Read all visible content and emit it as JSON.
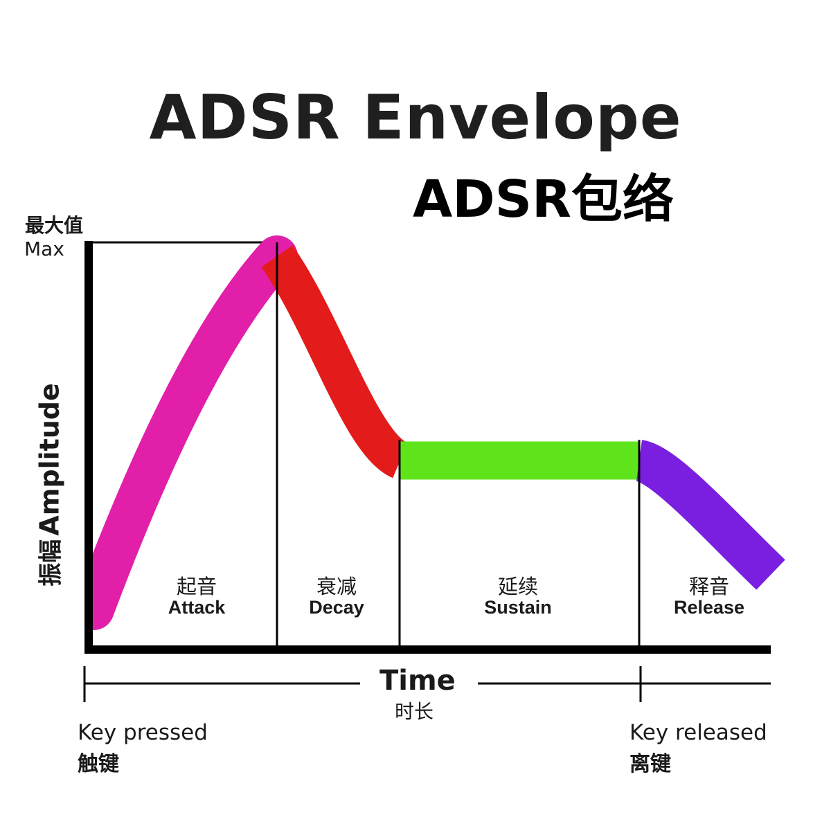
{
  "title": "ADSR Envelope",
  "subtitle": "ADSR包络",
  "y_axis": {
    "max_zh": "最大值",
    "max_en": "Max",
    "label_zh": "振幅",
    "label_en": "Amplitude"
  },
  "x_axis": {
    "label_en": "Time",
    "label_zh": "时长"
  },
  "events": {
    "press_en": "Key pressed",
    "press_zh": "触键",
    "release_en": "Key released",
    "release_zh": "离键"
  },
  "phases": [
    {
      "zh": "起音",
      "en": "Attack",
      "color": "#e11fa8"
    },
    {
      "zh": "衰减",
      "en": "Decay",
      "color": "#e31b1b"
    },
    {
      "zh": "延续",
      "en": "Sustain",
      "color": "#5fe31b"
    },
    {
      "zh": "释音",
      "en": "Release",
      "color": "#7a1fe0"
    }
  ]
}
